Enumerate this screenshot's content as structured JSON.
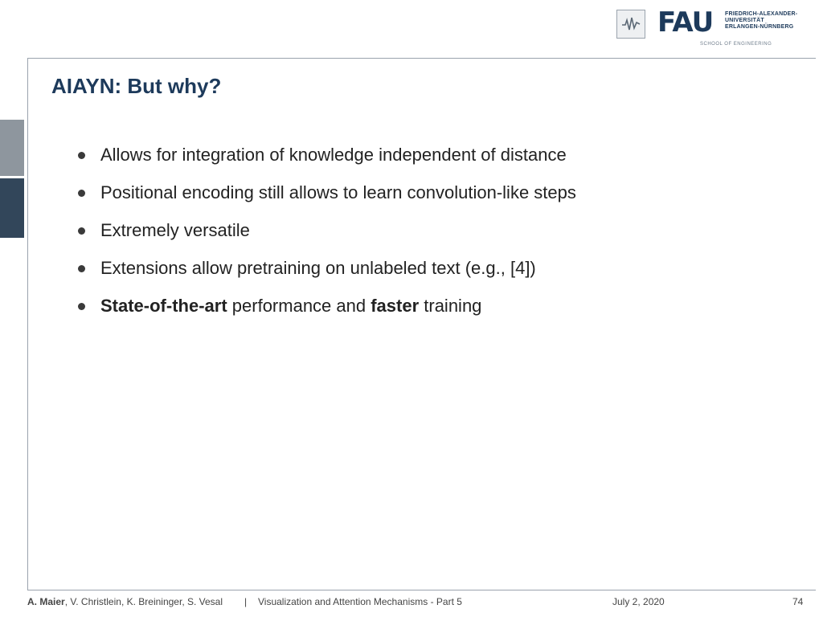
{
  "header": {
    "fau_letters": "FAU",
    "fau_name_lines": [
      "FRIEDRICH-ALEXANDER-",
      "UNIVERSITÄT",
      "ERLANGEN-NÜRNBERG"
    ],
    "school": "SCHOOL OF ENGINEERING"
  },
  "slide": {
    "title": "AIAYN: But why?",
    "bullets": [
      {
        "text": "Allows for integration of knowledge independent of distance"
      },
      {
        "text": "Positional encoding still allows to learn convolution-like steps"
      },
      {
        "text": "Extremely versatile"
      },
      {
        "text": "Extensions allow pretraining on unlabeled text (e.g., [4])"
      },
      {
        "parts": [
          "State-of-the-art",
          " performance and ",
          "faster",
          " training"
        ]
      }
    ]
  },
  "footer": {
    "lead_author": "A. Maier",
    "co_authors": ", V. Christlein, K. Breininger, S. Vesal",
    "separator": "|",
    "lecture": "Visualization and Attention Mechanisms - Part 5",
    "date": "July 2, 2020",
    "page": "74"
  },
  "colors": {
    "title": "#1d3a5b",
    "side_tab_light": "#8e969e",
    "side_tab_dark": "#32465a"
  }
}
